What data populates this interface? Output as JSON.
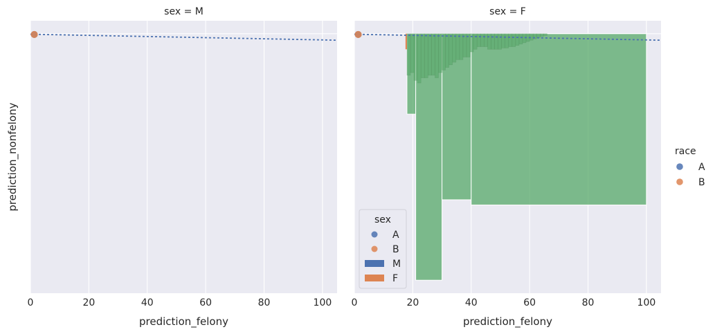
{
  "chart_data": {
    "type": "scatter",
    "xlabel": "prediction_felony",
    "ylabel": "prediction_nonfelony",
    "xlim": [
      0,
      105
    ],
    "x_ticks": [
      "0",
      "20",
      "40",
      "60",
      "80",
      "100"
    ],
    "grid": true,
    "figure_legend": {
      "title": "race",
      "placement": "right",
      "entries": [
        {
          "label": "A",
          "color": "#4c72b0",
          "marker": "circle"
        },
        {
          "label": "B",
          "color": "#dd8452",
          "marker": "circle"
        }
      ]
    },
    "panels": [
      {
        "title": "sex = M",
        "scatter": [
          {
            "name": "A",
            "x": 0.6,
            "y": 0.997,
            "color": "#4c72b0"
          },
          {
            "name": "B",
            "x": 0.6,
            "y": 0.997,
            "color": "#dd8452"
          }
        ],
        "regression_line": {
          "x": [
            0,
            105
          ],
          "y": [
            0.998,
            0.975
          ],
          "color": "#4c72b0",
          "style": "dotted"
        },
        "histogram": []
      },
      {
        "title": "sex = F",
        "scatter": [
          {
            "name": "A",
            "x": 0.6,
            "y": 0.997,
            "color": "#4c72b0"
          },
          {
            "name": "B",
            "x": 0.6,
            "y": 0.997,
            "color": "#dd8452"
          }
        ],
        "regression_line": {
          "x": [
            0,
            105
          ],
          "y": [
            0.998,
            0.975
          ],
          "color": "#4c72b0",
          "style": "dotted"
        },
        "histogram_color": "#55a868",
        "histogram_outline_color": "#dd8452",
        "histogram_outline": [
          {
            "x0": 17.5,
            "x1": 18,
            "y0": 0.94,
            "y1": 1.0
          }
        ],
        "histogram": [
          {
            "x0": 18,
            "x1": 21,
            "y0": 0.69,
            "y1": 1.0
          },
          {
            "x0": 21,
            "x1": 30,
            "y0": 0.05,
            "y1": 1.0
          },
          {
            "x0": 30,
            "x1": 40,
            "y0": 0.36,
            "y1": 1.0
          },
          {
            "x0": 40,
            "x1": 100,
            "y0": 0.34,
            "y1": 1.0
          }
        ],
        "histogram_fine": [
          {
            "x0": 18.0,
            "x1": 19.2,
            "y0": 0.84
          },
          {
            "x0": 19.2,
            "x1": 20.4,
            "y0": 0.85
          },
          {
            "x0": 20.4,
            "x1": 21.6,
            "y0": 0.82
          },
          {
            "x0": 21.6,
            "x1": 22.8,
            "y0": 0.81
          },
          {
            "x0": 22.8,
            "x1": 24.0,
            "y0": 0.83
          },
          {
            "x0": 24.0,
            "x1": 25.2,
            "y0": 0.83
          },
          {
            "x0": 25.2,
            "x1": 26.4,
            "y0": 0.84
          },
          {
            "x0": 26.4,
            "x1": 27.6,
            "y0": 0.84
          },
          {
            "x0": 27.6,
            "x1": 28.8,
            "y0": 0.83
          },
          {
            "x0": 28.8,
            "x1": 30.0,
            "y0": 0.85
          },
          {
            "x0": 30.0,
            "x1": 31.2,
            "y0": 0.86
          },
          {
            "x0": 31.2,
            "x1": 32.4,
            "y0": 0.87
          },
          {
            "x0": 32.4,
            "x1": 33.6,
            "y0": 0.88
          },
          {
            "x0": 33.6,
            "x1": 34.8,
            "y0": 0.89
          },
          {
            "x0": 34.8,
            "x1": 36.0,
            "y0": 0.9
          },
          {
            "x0": 36.0,
            "x1": 37.2,
            "y0": 0.9
          },
          {
            "x0": 37.2,
            "x1": 38.4,
            "y0": 0.91
          },
          {
            "x0": 38.4,
            "x1": 39.6,
            "y0": 0.91
          },
          {
            "x0": 39.6,
            "x1": 40.8,
            "y0": 0.93
          },
          {
            "x0": 40.8,
            "x1": 42.0,
            "y0": 0.94
          },
          {
            "x0": 42.0,
            "x1": 43.2,
            "y0": 0.95
          },
          {
            "x0": 43.2,
            "x1": 44.4,
            "y0": 0.95
          },
          {
            "x0": 44.4,
            "x1": 45.6,
            "y0": 0.95
          },
          {
            "x0": 45.6,
            "x1": 46.8,
            "y0": 0.94
          },
          {
            "x0": 46.8,
            "x1": 48.0,
            "y0": 0.94
          },
          {
            "x0": 48.0,
            "x1": 49.2,
            "y0": 0.94
          },
          {
            "x0": 49.2,
            "x1": 50.4,
            "y0": 0.94
          },
          {
            "x0": 50.4,
            "x1": 51.6,
            "y0": 0.945
          },
          {
            "x0": 51.6,
            "x1": 52.8,
            "y0": 0.945
          },
          {
            "x0": 52.8,
            "x1": 54.0,
            "y0": 0.95
          },
          {
            "x0": 54.0,
            "x1": 55.2,
            "y0": 0.95
          },
          {
            "x0": 55.2,
            "x1": 56.4,
            "y0": 0.955
          },
          {
            "x0": 56.4,
            "x1": 57.6,
            "y0": 0.96
          },
          {
            "x0": 57.6,
            "x1": 58.8,
            "y0": 0.965
          },
          {
            "x0": 58.8,
            "x1": 60.0,
            "y0": 0.97
          },
          {
            "x0": 60.0,
            "x1": 61.2,
            "y0": 0.975
          },
          {
            "x0": 61.2,
            "x1": 62.4,
            "y0": 0.98
          },
          {
            "x0": 62.4,
            "x1": 63.6,
            "y0": 0.985
          },
          {
            "x0": 63.6,
            "x1": 64.8,
            "y0": 0.99
          },
          {
            "x0": 64.8,
            "x1": 66.0,
            "y0": 0.993
          }
        ],
        "inner_legend": {
          "title": "sex",
          "placement": "lower left",
          "entries": [
            {
              "label": "A",
              "color": "#4c72b0",
              "marker": "circle"
            },
            {
              "label": "B",
              "color": "#dd8452",
              "marker": "circle"
            },
            {
              "label": "M",
              "color": "#4c72b0",
              "marker": "patch"
            },
            {
              "label": "F",
              "color": "#dd8452",
              "marker": "patch"
            }
          ]
        }
      }
    ]
  }
}
